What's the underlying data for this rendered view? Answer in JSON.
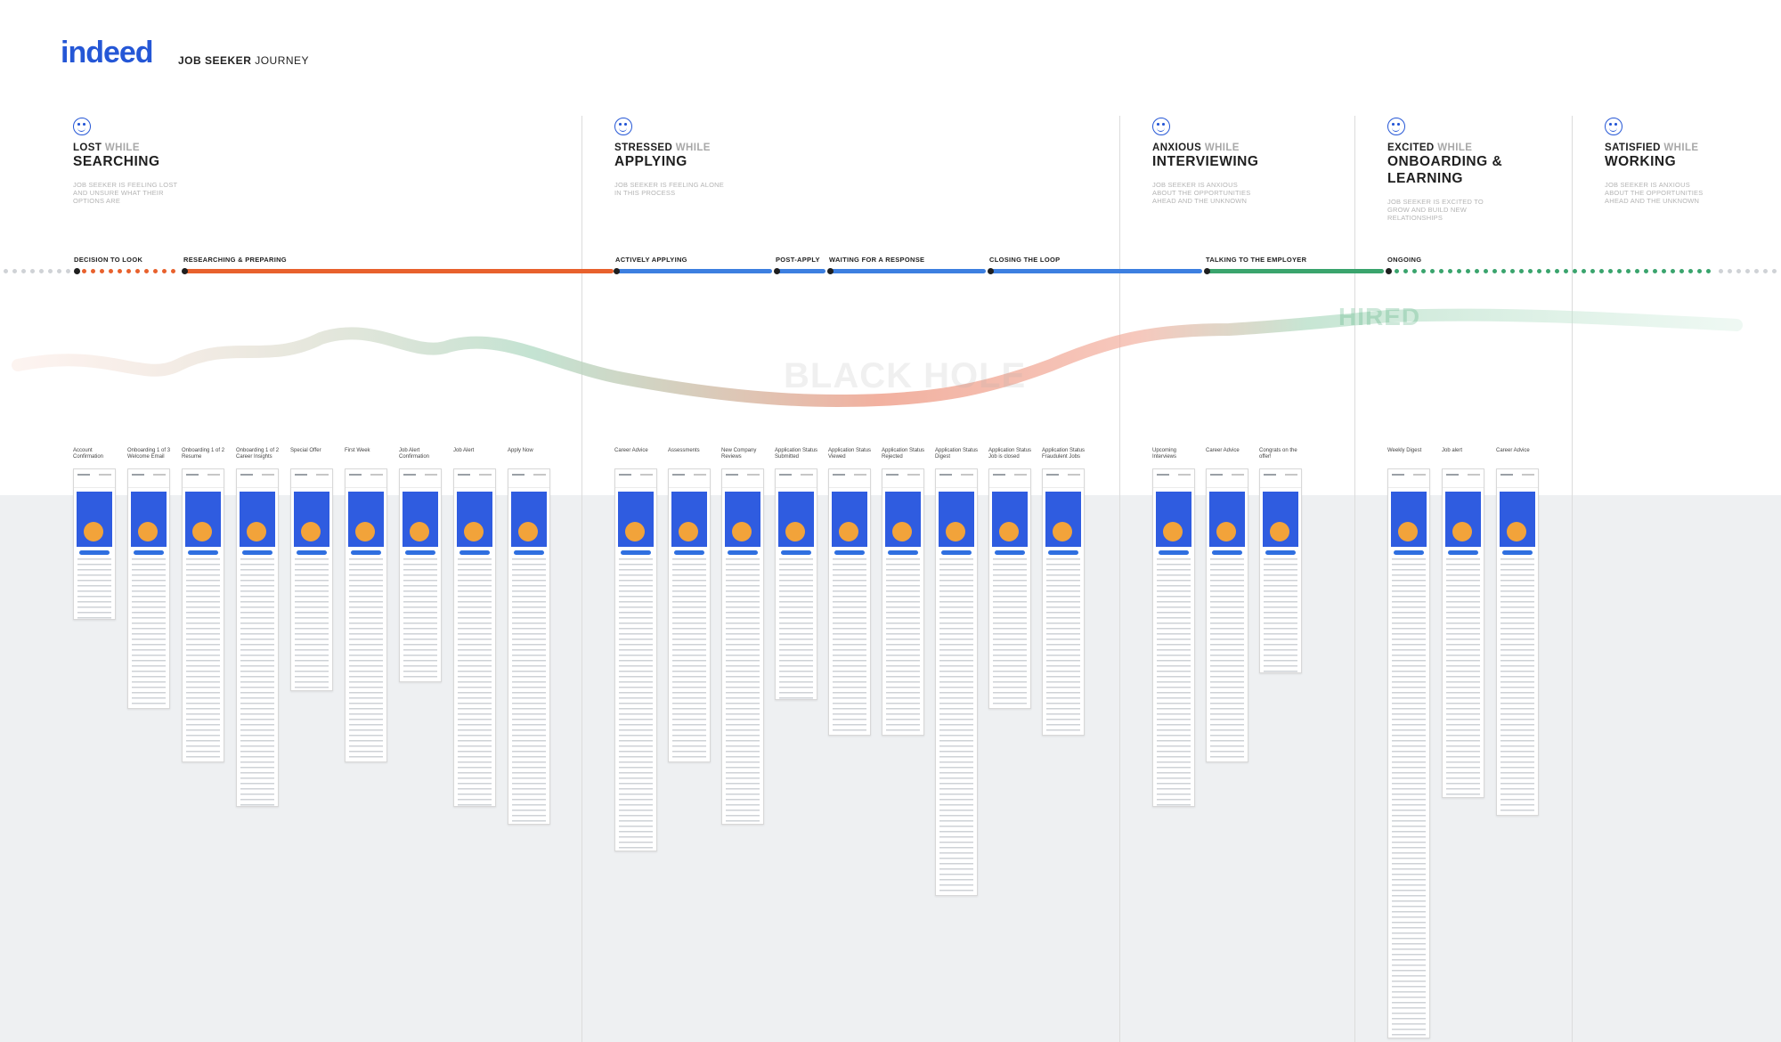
{
  "header": {
    "logo": "indeed",
    "subtitle_bold": "JOB SEEKER",
    "subtitle": "JOURNEY"
  },
  "phases": [
    {
      "icon": "sad-face-icon",
      "mood": "LOST",
      "while": "WHILE",
      "activity": "SEARCHING",
      "description": "JOB SEEKER IS FEELING LOST\nAND UNSURE WHAT THEIR\nOPTIONS ARE"
    },
    {
      "icon": "neutral-face-icon",
      "mood": "STRESSED",
      "while": "WHILE",
      "activity": "APPLYING",
      "description": "JOB SEEKER IS FEELING ALONE\nIN THIS PROCESS"
    },
    {
      "icon": "anxious-face-icon",
      "mood": "ANXIOUS",
      "while": "WHILE",
      "activity": "INTERVIEWING",
      "description": "JOB SEEKER IS ANXIOUS\nABOUT THE OPPORTUNITIES\nAHEAD AND THE UNKNOWN"
    },
    {
      "icon": "excited-face-icon",
      "mood": "EXCITED",
      "while": "WHILE",
      "activity": "ONBOARDING &\nLEARNING",
      "description": "JOB SEEKER IS EXCITED TO\nGROW AND BUILD NEW\nRELATIONSHIPS"
    },
    {
      "icon": "happy-face-icon",
      "mood": "SATISFIED",
      "while": "WHILE",
      "activity": "WORKING",
      "description": "JOB SEEKER IS ANXIOUS\nABOUT THE OPPORTUNITIES\nAHEAD AND THE UNKNOWN"
    }
  ],
  "stages": [
    "DECISION TO LOOK",
    "RESEARCHING & PREPARING",
    "ACTIVELY APPLYING",
    "POST-APPLY",
    "WAITING FOR A RESPONSE",
    "CLOSING THE LOOP",
    "TALKING TO THE EMPLOYER",
    "ONGOING"
  ],
  "curve_labels": {
    "black_hole": "BLACK HOLE",
    "hired": "HIRED"
  },
  "colors": {
    "brand": "#2557d6",
    "searching": "#e8612d",
    "applying": "#3d7fe0",
    "employed": "#3aa46d"
  },
  "screens": {
    "searching": [
      "Account Confirmation",
      "Onboarding 1 of 3 Welcome Email",
      "Onboarding 1 of 2 Resume",
      "Onboarding 1 of 2 Career Insights",
      "Special Offer",
      "First Week",
      "Job Alert Confirmation",
      "Job Alert",
      "Apply Now"
    ],
    "applying": [
      "Career Advice",
      "Assessments",
      "New Company Reviews",
      "Application Status Submitted",
      "Application Status Viewed",
      "Application Status Rejected",
      "Application Status Digest",
      "Application Status Job is closed",
      "Application Status Fraudulent Jobs"
    ],
    "interviewing": [
      "Upcoming Interviews",
      "Career Advice",
      "Congrats on the offer!"
    ],
    "onboarding": [
      "Weekly Digest",
      "Job alert",
      "Career Advice"
    ]
  }
}
